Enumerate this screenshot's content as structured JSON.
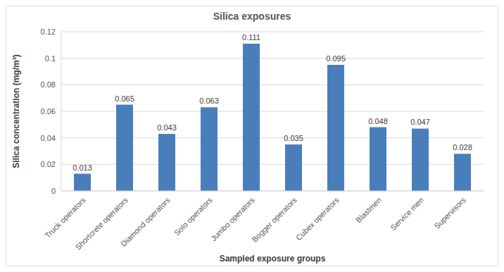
{
  "chart_data": {
    "type": "bar",
    "title": "Silica exposures",
    "x_label": "Sampled exposure groups",
    "y_label": "Silica concentration (mg/m³)",
    "categories": [
      "Truck operators",
      "Shortcrete  operators",
      "Diamond operators",
      "Solo operators",
      "Jumbo operators",
      "Bogger operators",
      "Cubex operators",
      "Blastmen",
      "Service men",
      "Supervisors"
    ],
    "values": [
      0.013,
      0.065,
      0.043,
      0.063,
      0.111,
      0.035,
      0.095,
      0.048,
      0.047,
      0.028
    ],
    "color": "#4a7ebb",
    "ylim": [
      0,
      0.12
    ],
    "yticks": [
      0,
      0.02,
      0.04,
      0.06,
      0.08,
      0.1,
      0.12
    ],
    "grid": true,
    "data_labels": true
  }
}
